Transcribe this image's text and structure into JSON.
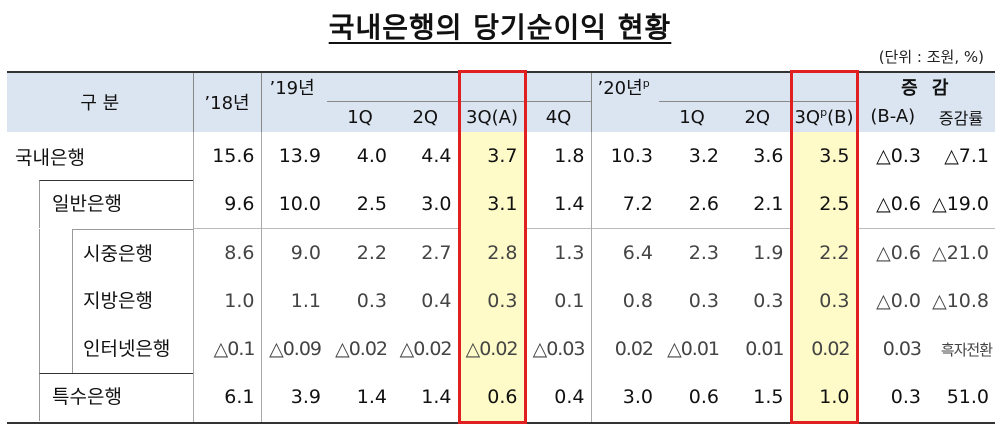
{
  "title": "국내은행의 당기순이익 현황",
  "unit": "(단위 : 조원, %)",
  "header": {
    "category": "구 분",
    "y18": "’18년",
    "y19": "’19년",
    "q1": "1Q",
    "q2": "2Q",
    "q3a": "3Q(A)",
    "q4": "4Q",
    "y20": "’20년",
    "y20_sup": "p",
    "q1b": "1Q",
    "q2b": "2Q",
    "q3b_pre": "3Q",
    "q3b_sup": "p",
    "q3b_post": "(B)",
    "change_top": "증 감",
    "change_sub": "(B-A)",
    "rate": "증감률"
  },
  "rows": [
    {
      "name": "국내은행",
      "v": [
        "15.6",
        "13.9",
        "4.0",
        "4.4",
        "3.7",
        "1.8",
        "10.3",
        "3.2",
        "3.6",
        "3.5",
        "△0.3",
        "△7.1"
      ]
    },
    {
      "name": "일반은행",
      "v": [
        "9.6",
        "10.0",
        "2.5",
        "3.0",
        "3.1",
        "1.4",
        "7.2",
        "2.6",
        "2.1",
        "2.5",
        "△0.6",
        "△19.0"
      ]
    },
    {
      "name": "시중은행",
      "v": [
        "8.6",
        "9.0",
        "2.2",
        "2.7",
        "2.8",
        "1.3",
        "6.4",
        "2.3",
        "1.9",
        "2.2",
        "△0.6",
        "△21.0"
      ]
    },
    {
      "name": "지방은행",
      "v": [
        "1.0",
        "1.1",
        "0.3",
        "0.4",
        "0.3",
        "0.1",
        "0.8",
        "0.3",
        "0.3",
        "0.3",
        "△0.0",
        "△10.8"
      ]
    },
    {
      "name": "인터넷은행",
      "v": [
        "△0.1",
        "△0.09",
        "△0.02",
        "△0.02",
        "△0.02",
        "△0.03",
        "0.02",
        "△0.01",
        "0.01",
        "0.02",
        "0.03",
        "흑자전환"
      ]
    },
    {
      "name": "특수은행",
      "v": [
        "6.1",
        "3.9",
        "1.4",
        "1.4",
        "0.6",
        "0.4",
        "3.0",
        "0.6",
        "1.5",
        "1.0",
        "0.3",
        "51.0"
      ]
    }
  ]
}
